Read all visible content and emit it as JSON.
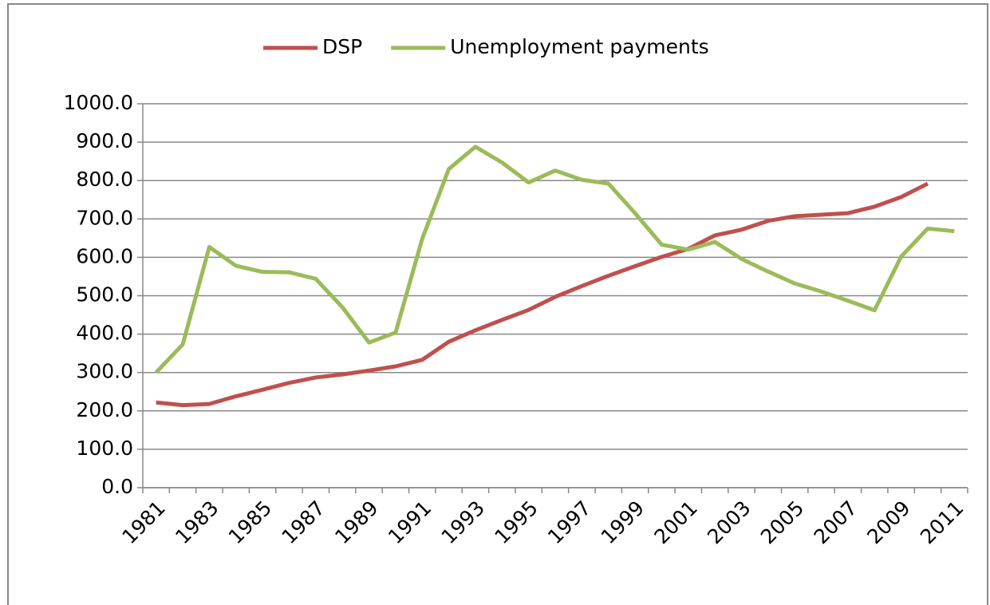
{
  "chart_data": {
    "type": "line",
    "categories": [
      "1981",
      null,
      "1983",
      null,
      "1985",
      null,
      "1987",
      null,
      "1989",
      null,
      "1991",
      null,
      "1993",
      null,
      "1995",
      null,
      "1997",
      null,
      "1999",
      null,
      "2001",
      null,
      "2003",
      null,
      "2005",
      null,
      "2007",
      null,
      "2009",
      null,
      "2011"
    ],
    "series": [
      {
        "name": "DSP",
        "color": "#c0504d",
        "values": [
          222,
          215,
          218,
          238,
          255,
          273,
          287,
          295,
          305,
          316,
          333,
          380,
          410,
          437,
          463,
          497,
          525,
          552,
          577,
          601,
          622,
          657,
          672,
          695,
          707,
          711,
          715,
          732,
          757,
          792,
          null
        ]
      },
      {
        "name": "Unemployment payments",
        "color": "#9bbb59",
        "values": [
          300,
          373,
          627,
          578,
          562,
          561,
          544,
          470,
          378,
          404,
          648,
          830,
          888,
          847,
          795,
          826,
          802,
          792,
          715,
          633,
          620,
          640,
          596,
          563,
          532,
          511,
          487,
          462,
          602,
          675,
          668
        ]
      }
    ],
    "ylim": [
      0,
      1000
    ],
    "yticks": [
      {
        "value": 0,
        "label": "0.0"
      },
      {
        "value": 100,
        "label": "100.0"
      },
      {
        "value": 200,
        "label": "200.0"
      },
      {
        "value": 300,
        "label": "300.0"
      },
      {
        "value": 400,
        "label": "400.0"
      },
      {
        "value": 500,
        "label": "500.0"
      },
      {
        "value": 600,
        "label": "600.0"
      },
      {
        "value": 700,
        "label": "700.0"
      },
      {
        "value": 800,
        "label": "800.0"
      },
      {
        "value": 900,
        "label": "900.0"
      },
      {
        "value": 1000,
        "label": "1000.0"
      }
    ],
    "grid": true,
    "legend": "top"
  }
}
